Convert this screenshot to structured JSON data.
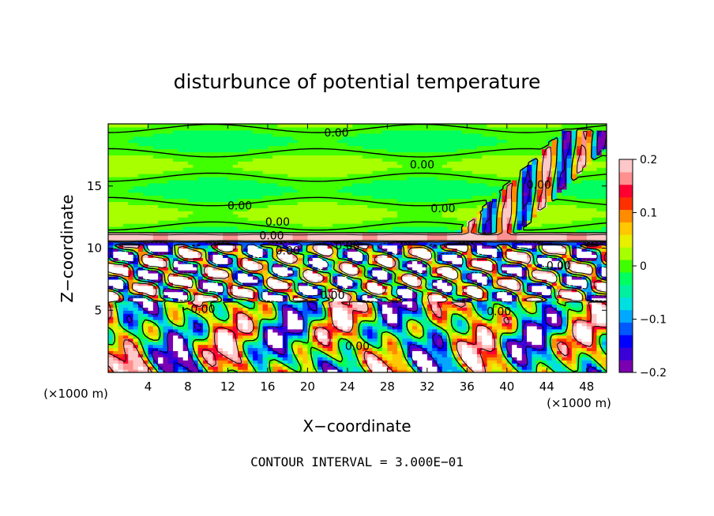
{
  "chart_data": {
    "type": "heatmap",
    "title": "disturbunce of potential temperature",
    "xlabel": "X−coordinate",
    "ylabel": "Z−coordinate",
    "x_unit_left": "(×1000 m)",
    "x_unit_right": "(×1000 m)",
    "xlim": [
      0,
      50
    ],
    "ylim": [
      0,
      20
    ],
    "x_ticks": [
      4,
      8,
      12,
      16,
      20,
      24,
      28,
      32,
      36,
      40,
      44,
      48
    ],
    "y_ticks": [
      5,
      10,
      15
    ],
    "footer": "CONTOUR INTERVAL = 3.000E−01",
    "colorbar": {
      "min": -0.2,
      "max": 0.2,
      "ticks": [
        {
          "value": 0.2,
          "label": "0.2"
        },
        {
          "value": 0.1,
          "label": "0.1"
        },
        {
          "value": 0,
          "label": "0"
        },
        {
          "value": -0.1,
          "label": "−0.1"
        },
        {
          "value": -0.2,
          "label": "−0.2"
        }
      ],
      "colors": [
        "#7a00b0",
        "#3a00d8",
        "#0000ff",
        "#0058ff",
        "#00a8ff",
        "#00e0e0",
        "#00f0a0",
        "#00ff60",
        "#40ff00",
        "#a8ff00",
        "#e8f000",
        "#ffc800",
        "#ff8c00",
        "#ff3000",
        "#ff0030",
        "#ff9090",
        "#ffc8c8"
      ]
    },
    "contour_labels": [
      {
        "x": 22.9,
        "z": 19.0,
        "text": "0.00"
      },
      {
        "x": 31.5,
        "z": 16.4,
        "text": "0.00"
      },
      {
        "x": 13.2,
        "z": 13.1,
        "text": "0.00"
      },
      {
        "x": 33.6,
        "z": 12.9,
        "text": "0.00"
      },
      {
        "x": 17.0,
        "z": 11.8,
        "text": "0.00"
      },
      {
        "x": 16.4,
        "z": 10.7,
        "text": "0.00"
      },
      {
        "x": 18.0,
        "z": 9.5,
        "text": "0.00"
      },
      {
        "x": 43.2,
        "z": 14.8,
        "text": "0.00"
      },
      {
        "x": 45.2,
        "z": 8.3,
        "text": "0.00"
      },
      {
        "x": 22.5,
        "z": 5.9,
        "text": "0.00"
      },
      {
        "x": 9.5,
        "z": 4.8,
        "text": "0.00"
      },
      {
        "x": 25.0,
        "z": 1.8,
        "text": "0.00"
      },
      {
        "x": 39.2,
        "z": 4.6,
        "text": "0.00"
      },
      {
        "x": 24.0,
        "z": 9.9,
        "text": "0.00"
      }
    ]
  }
}
